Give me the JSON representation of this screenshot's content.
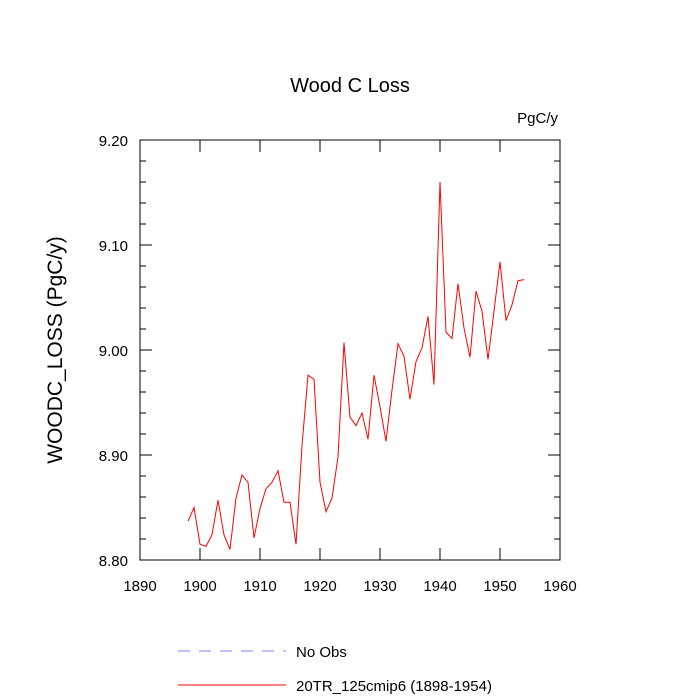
{
  "chart_data": {
    "type": "line",
    "title": "Wood C Loss",
    "units_label": "PgC/y",
    "xlabel": "",
    "ylabel": "WOODC_LOSS  (PgC/y)",
    "xlim": [
      1890,
      1960
    ],
    "ylim": [
      8.8,
      9.2
    ],
    "x_ticks": [
      1890,
      1900,
      1910,
      1920,
      1930,
      1940,
      1950,
      1960
    ],
    "x_tick_labels": [
      "1890",
      "1900",
      "1910",
      "1920",
      "1930",
      "1940",
      "1950",
      "1960"
    ],
    "y_ticks": [
      8.8,
      8.9,
      9.0,
      9.1,
      9.2
    ],
    "y_tick_labels": [
      "8.80",
      "8.90",
      "9.00",
      "9.10",
      "9.20"
    ],
    "grid": false,
    "legend": [
      {
        "label": "No Obs",
        "style": "dashed",
        "color": "#8080ff"
      },
      {
        "label": "20TR_125cmip6 (1898-1954)",
        "style": "solid",
        "color": "#ff0000"
      }
    ],
    "series": [
      {
        "name": "20TR_125cmip6 (1898-1954)",
        "color": "#ff0000",
        "x": [
          1898,
          1899,
          1900,
          1901,
          1902,
          1903,
          1904,
          1905,
          1906,
          1907,
          1908,
          1909,
          1910,
          1911,
          1912,
          1913,
          1914,
          1915,
          1916,
          1917,
          1918,
          1919,
          1920,
          1921,
          1922,
          1923,
          1924,
          1925,
          1926,
          1927,
          1928,
          1929,
          1930,
          1931,
          1932,
          1933,
          1934,
          1935,
          1936,
          1937,
          1938,
          1939,
          1940,
          1941,
          1942,
          1943,
          1944,
          1945,
          1946,
          1947,
          1948,
          1949,
          1950,
          1951,
          1952,
          1953,
          1954
        ],
        "values": [
          8.837,
          8.85,
          8.815,
          8.813,
          8.824,
          8.857,
          8.824,
          8.81,
          8.859,
          8.881,
          8.874,
          8.821,
          8.849,
          8.868,
          8.874,
          8.885,
          8.855,
          8.855,
          8.815,
          8.909,
          8.976,
          8.972,
          8.874,
          8.846,
          8.859,
          8.898,
          9.007,
          8.936,
          8.928,
          8.94,
          8.915,
          8.976,
          8.946,
          8.913,
          8.962,
          9.006,
          8.994,
          8.953,
          8.989,
          9.002,
          9.032,
          8.967,
          9.16,
          9.017,
          9.011,
          9.063,
          9.021,
          8.993,
          9.056,
          9.037,
          8.991,
          9.037,
          9.084,
          9.028,
          9.043,
          9.066,
          9.067
        ]
      }
    ]
  }
}
